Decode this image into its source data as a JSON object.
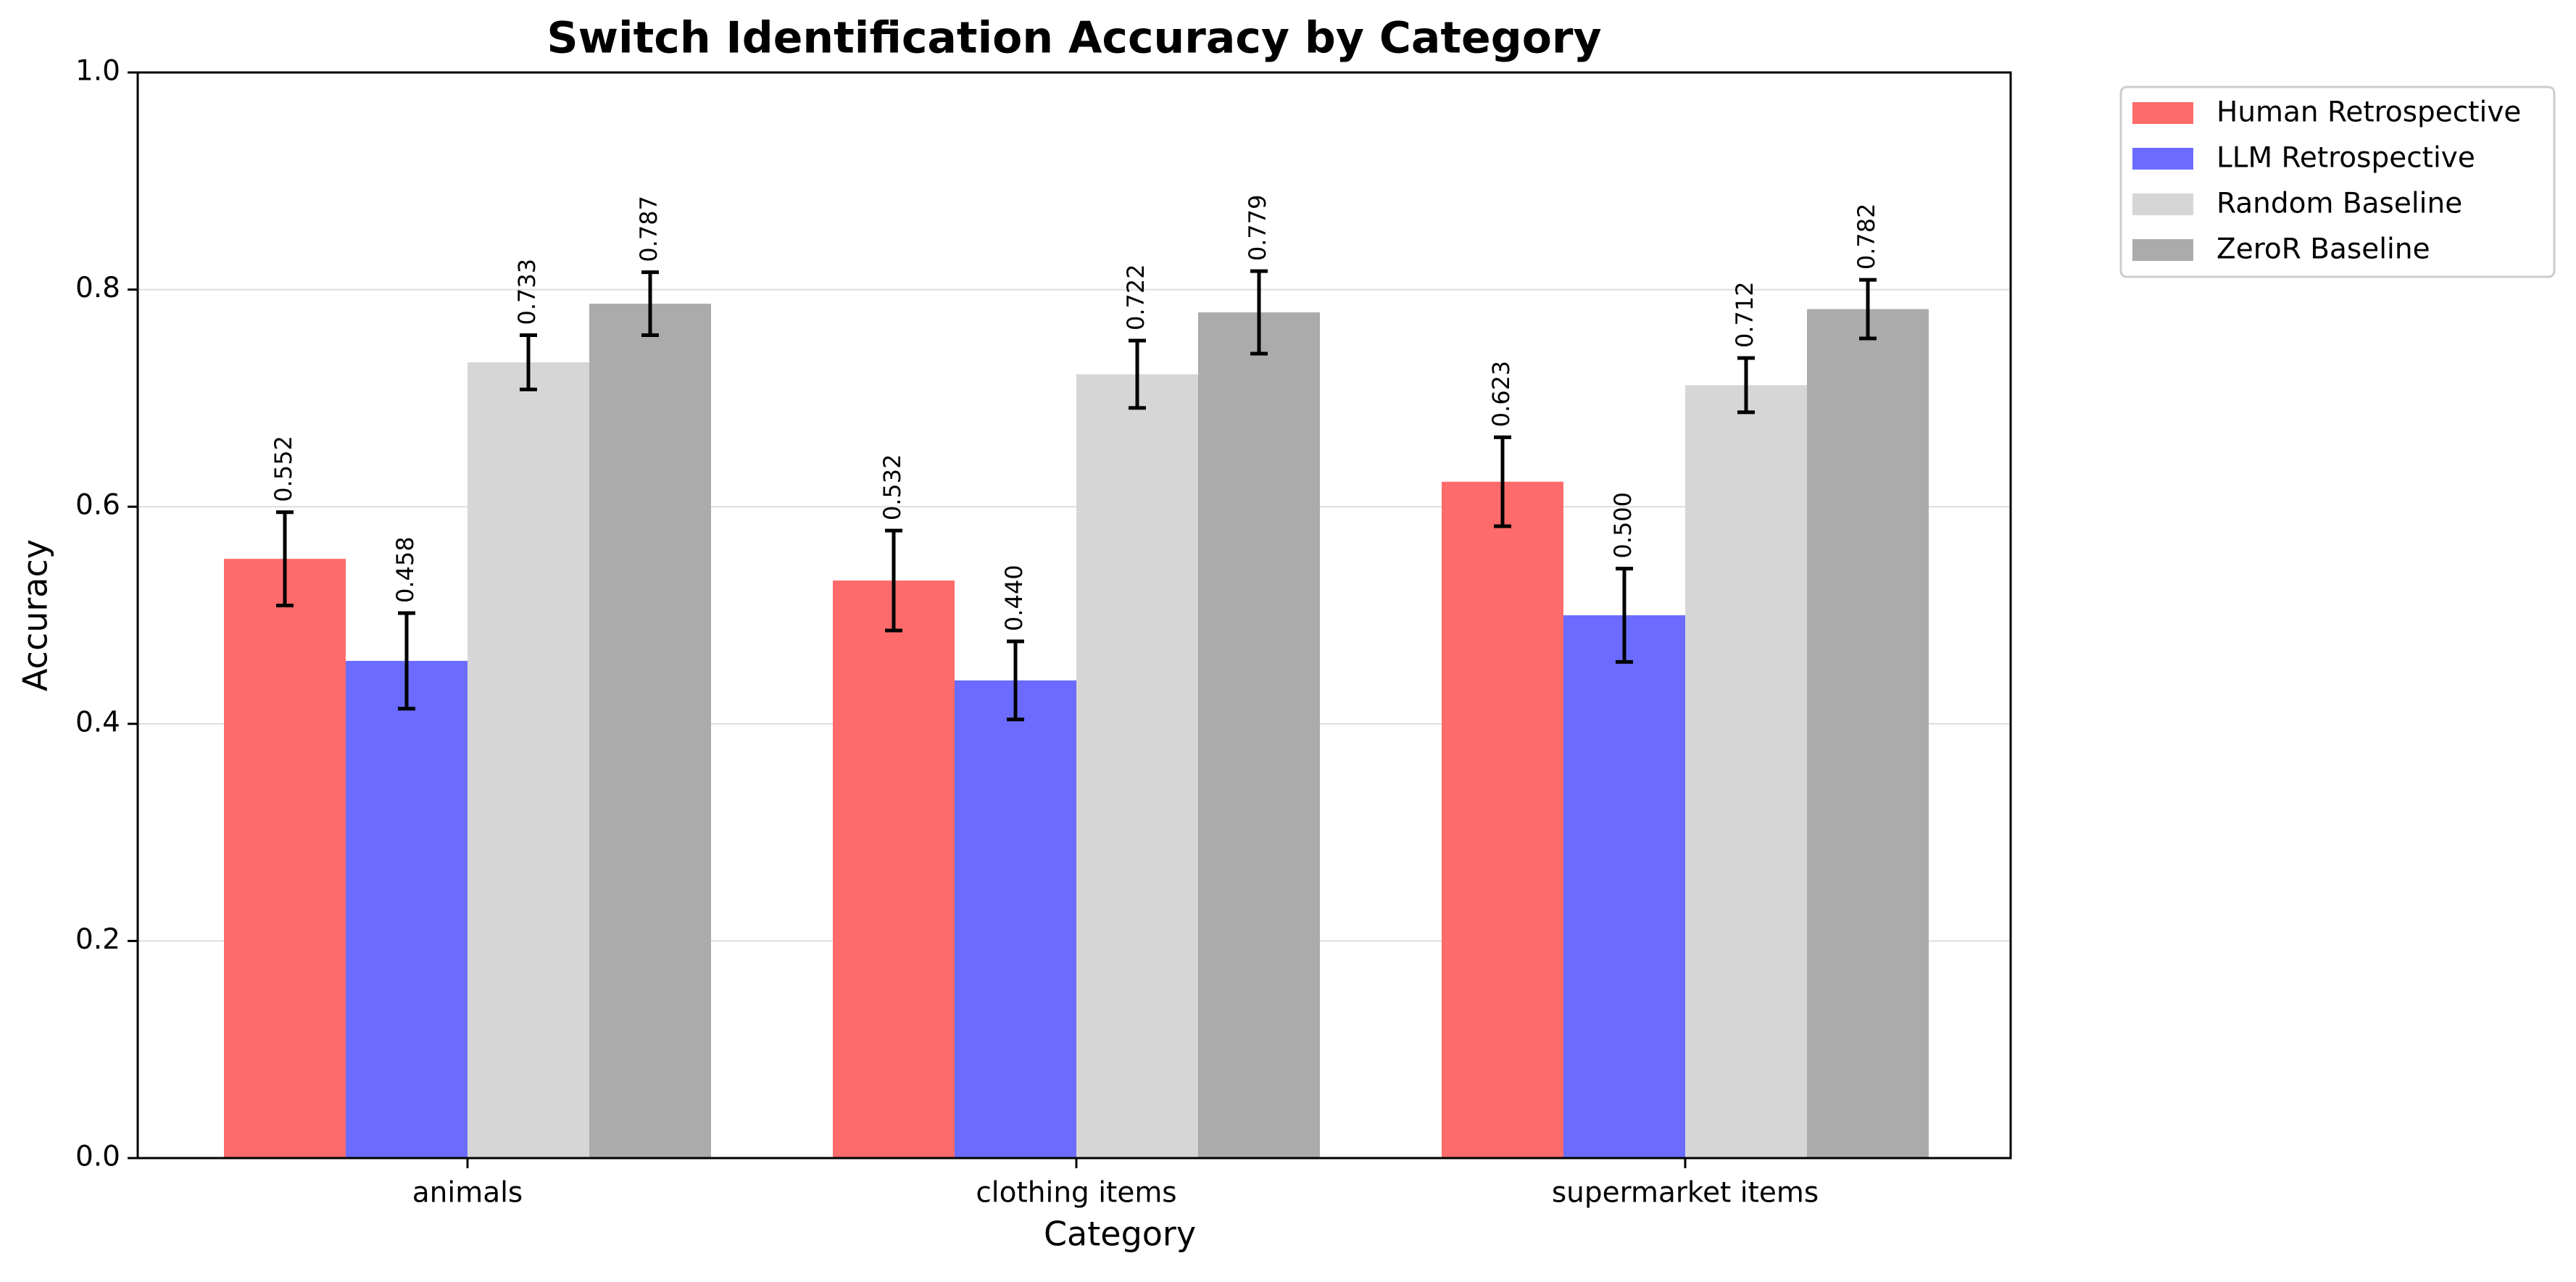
{
  "chart_data": {
    "type": "bar",
    "title": "Switch Identification Accuracy by Category",
    "xlabel": "Category",
    "ylabel": "Accuracy",
    "ylim": [
      0,
      1.0
    ],
    "yticks": [
      "0.0",
      "0.2",
      "0.4",
      "0.6",
      "0.8",
      "1.0"
    ],
    "grid": true,
    "legend_position": "outside top-right",
    "categories": [
      "animals",
      "clothing items",
      "supermarket items"
    ],
    "series": [
      {
        "name": "Human Retrospective",
        "color": "#ff6b6b",
        "values": [
          0.552,
          0.532,
          0.623
        ],
        "labels": [
          "0.552",
          "0.532",
          "0.623"
        ],
        "errors": [
          0.043,
          0.046,
          0.041
        ]
      },
      {
        "name": "LLM Retrospective",
        "color": "#6b6bff",
        "values": [
          0.458,
          0.44,
          0.5
        ],
        "labels": [
          "0.458",
          "0.440",
          "0.500"
        ],
        "errors": [
          0.044,
          0.036,
          0.043
        ]
      },
      {
        "name": "Random Baseline",
        "color": "#d6d6d6",
        "values": [
          0.733,
          0.722,
          0.712
        ],
        "labels": [
          "0.733",
          "0.722",
          "0.712"
        ],
        "errors": [
          0.025,
          0.031,
          0.025
        ]
      },
      {
        "name": "ZeroR Baseline",
        "color": "#ababab",
        "values": [
          0.787,
          0.779,
          0.782
        ],
        "labels": [
          "0.787",
          "0.779",
          "0.782"
        ],
        "errors": [
          0.029,
          0.038,
          0.027
        ]
      }
    ]
  }
}
